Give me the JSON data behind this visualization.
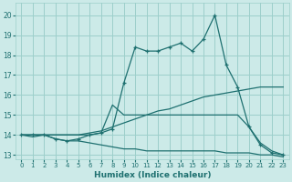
{
  "xlabel": "Humidex (Indice chaleur)",
  "ylabel": "",
  "xlim": [
    -0.5,
    23.5
  ],
  "ylim": [
    12.8,
    20.6
  ],
  "yticks": [
    13,
    14,
    15,
    16,
    17,
    18,
    19,
    20
  ],
  "xticks": [
    0,
    1,
    2,
    3,
    4,
    5,
    6,
    7,
    8,
    9,
    10,
    11,
    12,
    13,
    14,
    15,
    16,
    17,
    18,
    19,
    20,
    21,
    22,
    23
  ],
  "background_color": "#cceae8",
  "grid_color": "#9dcfcb",
  "line_color": "#1e7070",
  "lines": [
    {
      "x": [
        0,
        1,
        2,
        3,
        4,
        5,
        6,
        7,
        8,
        9,
        10,
        11,
        12,
        13,
        14,
        15,
        16,
        17,
        18,
        19,
        20,
        21,
        22,
        23
      ],
      "y": [
        14.0,
        14.0,
        14.0,
        13.8,
        13.7,
        13.8,
        14.0,
        14.1,
        14.3,
        16.6,
        18.4,
        18.2,
        18.2,
        18.4,
        18.6,
        18.2,
        18.8,
        20.0,
        17.5,
        16.4,
        14.4,
        13.5,
        13.1,
        13.0
      ],
      "marker": true
    },
    {
      "x": [
        0,
        1,
        2,
        3,
        4,
        5,
        6,
        7,
        8,
        9,
        10,
        11,
        12,
        13,
        14,
        15,
        16,
        17,
        18,
        19,
        20,
        21,
        22,
        23
      ],
      "y": [
        14.0,
        14.0,
        14.0,
        14.0,
        14.0,
        14.0,
        14.0,
        14.1,
        15.5,
        15.0,
        15.0,
        15.0,
        15.0,
        15.0,
        15.0,
        15.0,
        15.0,
        15.0,
        15.0,
        15.0,
        14.4,
        13.6,
        13.2,
        13.0
      ],
      "marker": false
    },
    {
      "x": [
        0,
        1,
        2,
        3,
        4,
        5,
        6,
        7,
        8,
        9,
        10,
        11,
        12,
        13,
        14,
        15,
        16,
        17,
        18,
        19,
        20,
        21,
        22,
        23
      ],
      "y": [
        14.0,
        14.0,
        14.0,
        14.0,
        14.0,
        14.0,
        14.1,
        14.2,
        14.4,
        14.6,
        14.8,
        15.0,
        15.2,
        15.3,
        15.5,
        15.7,
        15.9,
        16.0,
        16.1,
        16.2,
        16.3,
        16.4,
        16.4,
        16.4
      ],
      "marker": false
    },
    {
      "x": [
        0,
        1,
        2,
        3,
        4,
        5,
        6,
        7,
        8,
        9,
        10,
        11,
        12,
        13,
        14,
        15,
        16,
        17,
        18,
        19,
        20,
        21,
        22,
        23
      ],
      "y": [
        14.0,
        13.9,
        14.0,
        13.8,
        13.7,
        13.7,
        13.6,
        13.5,
        13.4,
        13.3,
        13.3,
        13.2,
        13.2,
        13.2,
        13.2,
        13.2,
        13.2,
        13.2,
        13.1,
        13.1,
        13.1,
        13.0,
        13.0,
        12.9
      ],
      "marker": false
    }
  ]
}
